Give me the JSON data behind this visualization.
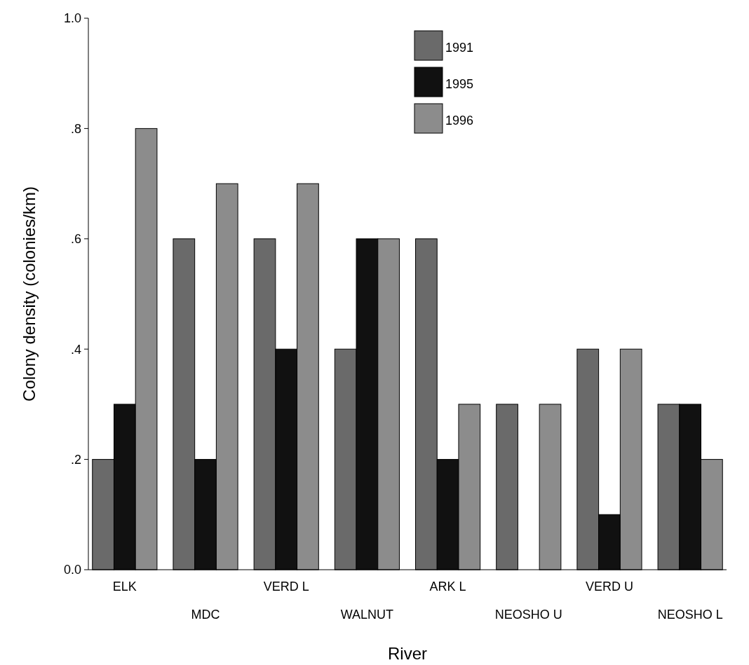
{
  "chart_data": {
    "type": "bar",
    "xlabel": "River",
    "ylabel": "Colony density (colonies/km)",
    "categories": [
      "ELK",
      "MDC",
      "VERD L",
      "WALNUT",
      "ARK L",
      "NEOSHO U",
      "VERD U",
      "NEOSHO L"
    ],
    "series": [
      {
        "name": "1991",
        "color": "#6a6a6a",
        "values": [
          0.2,
          0.6,
          0.6,
          0.4,
          0.6,
          0.3,
          0.4,
          0.3
        ]
      },
      {
        "name": "1995",
        "color": "#111111",
        "values": [
          0.3,
          0.2,
          0.4,
          0.6,
          0.2,
          null,
          0.1,
          0.3
        ]
      },
      {
        "name": "1996",
        "color": "#8c8c8c",
        "values": [
          0.8,
          0.7,
          0.7,
          0.6,
          0.3,
          0.3,
          0.4,
          0.2
        ]
      }
    ],
    "ylim": [
      0,
      1
    ],
    "yticks": [
      {
        "value": 0,
        "label": "0.0"
      },
      {
        "value": 0.2,
        "label": ".2"
      },
      {
        "value": 0.4,
        "label": ".4"
      },
      {
        "value": 0.6,
        "label": ".6"
      },
      {
        "value": 0.8,
        "label": ".8"
      },
      {
        "value": 1,
        "label": "1.0"
      }
    ],
    "legend": "top",
    "grid": false
  }
}
